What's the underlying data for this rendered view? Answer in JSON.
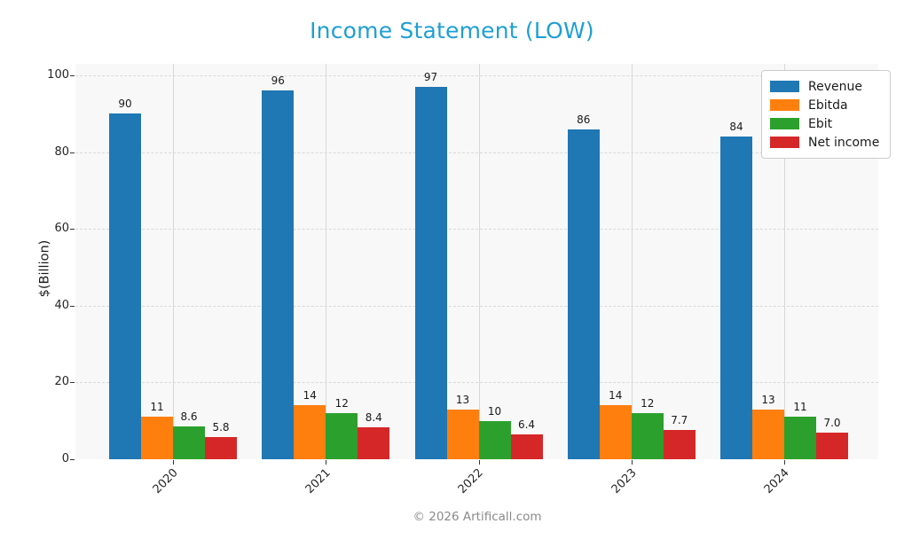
{
  "title": "Income Statement (LOW)",
  "footer": "© 2026 Artificall.com",
  "colors": {
    "title": "#1f9fd4",
    "plot_bg": "#f8f8f8",
    "grid_vertical": "#d7d7d7",
    "grid_horizontal": "#d9d9d9",
    "revenue": "#1f77b4",
    "ebitda": "#ff7f0e",
    "ebit": "#2ca02c",
    "net_income": "#d62728"
  },
  "chart_data": {
    "type": "bar",
    "title": "Income Statement (LOW)",
    "xlabel": "",
    "ylabel": "$(Billion)",
    "categories": [
      "2020",
      "2021",
      "2022",
      "2023",
      "2024"
    ],
    "series": [
      {
        "name": "Revenue",
        "color": "#1f77b4",
        "values": [
          90,
          96,
          97,
          86,
          84
        ],
        "labels": [
          "90",
          "96",
          "97",
          "86",
          "84"
        ]
      },
      {
        "name": "Ebitda",
        "color": "#ff7f0e",
        "values": [
          11,
          14,
          13,
          14,
          13
        ],
        "labels": [
          "11",
          "14",
          "13",
          "14",
          "13"
        ]
      },
      {
        "name": "Ebit",
        "color": "#2ca02c",
        "values": [
          8.6,
          12,
          10,
          12,
          11
        ],
        "labels": [
          "8.6",
          "12",
          "10",
          "12",
          "11"
        ]
      },
      {
        "name": "Net income",
        "color": "#d62728",
        "values": [
          5.8,
          8.4,
          6.4,
          7.7,
          7.0
        ],
        "labels": [
          "5.8",
          "8.4",
          "6.4",
          "7.7",
          "7.0"
        ]
      }
    ],
    "ylim": [
      0,
      103
    ],
    "yticks": [
      0,
      20,
      40,
      60,
      80,
      100
    ],
    "grid": true,
    "legend_position": "upper right"
  }
}
